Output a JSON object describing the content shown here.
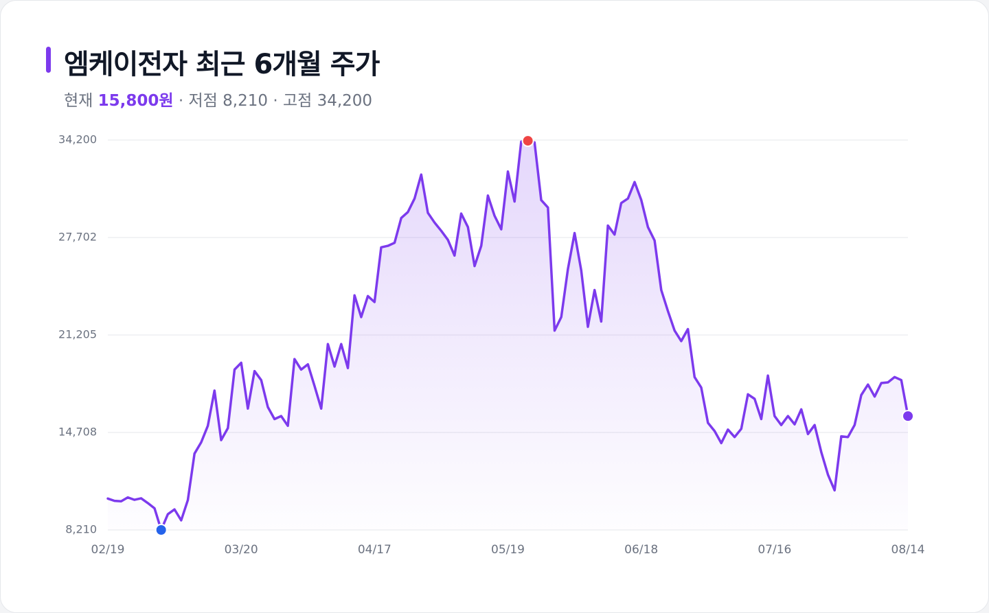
{
  "header": {
    "title": "엠케이전자 최근 6개월 주가",
    "current_label": "현재",
    "current_price": "15,800원",
    "sep1": "·",
    "low_label": "저점",
    "low_value": "8,210",
    "sep2": "·",
    "high_label": "고점",
    "high_value": "34,200"
  },
  "colors": {
    "accent": "#7c3aed",
    "line": "#7c3aed",
    "low_marker": "#2563eb",
    "high_marker": "#ef4444",
    "last_marker": "#7c3aed",
    "grid": "#e5e7eb"
  },
  "chart_data": {
    "type": "area",
    "title": "엠케이전자 최근 6개월 주가",
    "xlabel": "",
    "ylabel": "",
    "ylim": [
      8210,
      34200
    ],
    "yticks": [
      8210,
      14708,
      21205,
      27702,
      34200
    ],
    "ytick_labels": [
      "8,210",
      "14,708",
      "21,205",
      "27,702",
      "34,200"
    ],
    "x_range": [
      "02/19",
      "08/14"
    ],
    "xtick_labels": [
      "02/19",
      "03/20",
      "04/17",
      "05/19",
      "06/18",
      "07/16",
      "08/14"
    ],
    "xtick_index": [
      0,
      20,
      40,
      60,
      80,
      100,
      120
    ],
    "grid": true,
    "legend": "none",
    "low_index": 8,
    "high_index": 63,
    "series": [
      {
        "values": [
          10300,
          10150,
          10120,
          10380,
          10220,
          10320,
          10000,
          9650,
          8210,
          9260,
          9580,
          8850,
          10200,
          13300,
          14050,
          15150,
          17500,
          14200,
          15000,
          18900,
          19350,
          16300,
          18800,
          18200,
          16400,
          15600,
          15800,
          15150,
          19600,
          18900,
          19250,
          17800,
          16300,
          20600,
          19100,
          20600,
          19000,
          23850,
          22400,
          23800,
          23400,
          27050,
          27150,
          27350,
          29000,
          29400,
          30300,
          31900,
          29350,
          28700,
          28150,
          27550,
          26500,
          29300,
          28400,
          25800,
          27150,
          30500,
          29150,
          28250,
          32100,
          30100,
          34100,
          34150,
          34050,
          30200,
          29700,
          21500,
          22400,
          25600,
          28000,
          25500,
          21750,
          24200,
          22100,
          28500,
          27900,
          30000,
          30300,
          31400,
          30200,
          28400,
          27500,
          24200,
          22800,
          21500,
          20800,
          21600,
          18400,
          17700,
          15350,
          14800,
          14000,
          14900,
          14400,
          14950,
          17250,
          16950,
          15600,
          18500,
          15800,
          15200,
          15800,
          15250,
          16250,
          14600,
          15200,
          13400,
          11900,
          10850,
          14450,
          14400,
          15200,
          17200,
          17900,
          17100,
          18000,
          18050,
          18400,
          18200,
          15800
        ]
      }
    ]
  }
}
